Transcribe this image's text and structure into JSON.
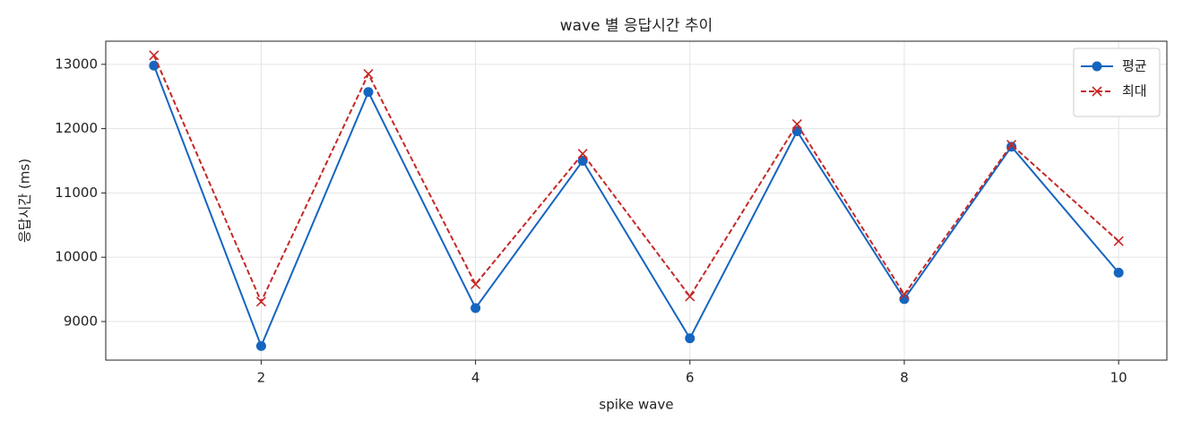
{
  "chart_data": {
    "type": "line",
    "title": "wave 별 응답시간 추이",
    "xlabel": "spike wave",
    "ylabel": "응답시간 (ms)",
    "x": [
      1,
      2,
      3,
      4,
      5,
      6,
      7,
      8,
      9,
      10
    ],
    "series": [
      {
        "name": "평균",
        "color": "#1565c0",
        "linestyle": "solid",
        "marker": "o",
        "values": [
          12980,
          8620,
          12570,
          9210,
          11500,
          8740,
          11960,
          9350,
          11720,
          9760
        ]
      },
      {
        "name": "최대",
        "color": "#c62828",
        "linestyle": "dashed",
        "marker": "x",
        "values": [
          13140,
          9310,
          12850,
          9580,
          11610,
          9390,
          12070,
          9420,
          11750,
          10250
        ]
      }
    ],
    "xlim": [
      0.55,
      10.45
    ],
    "xticks": [
      2,
      4,
      6,
      8,
      10
    ],
    "ylim": [
      8400,
      13360
    ],
    "yticks": [
      9000,
      10000,
      11000,
      12000,
      13000
    ],
    "grid": true,
    "legend": "upper right"
  }
}
